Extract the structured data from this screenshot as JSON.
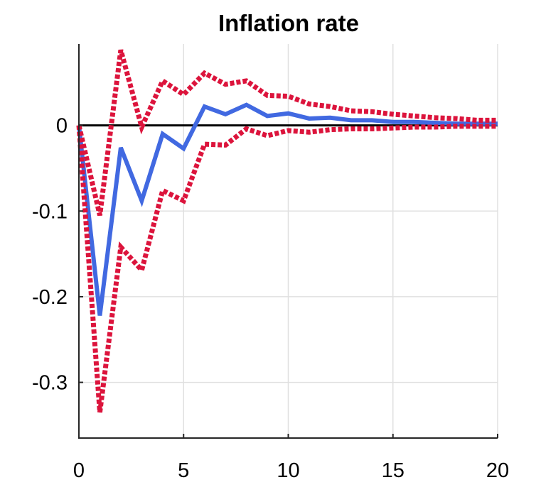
{
  "chart_data": {
    "type": "line",
    "title": "Inflation rate",
    "xlabel": "",
    "ylabel": "",
    "xlim": [
      0,
      20
    ],
    "ylim": [
      -0.365,
      0.095
    ],
    "x_ticks": [
      0,
      5,
      10,
      15,
      20
    ],
    "y_ticks": [
      0,
      -0.1,
      -0.2,
      -0.3
    ],
    "x_tick_labels": [
      "0",
      "5",
      "10",
      "15",
      "20"
    ],
    "y_tick_labels": [
      "0",
      "-0.1",
      "-0.2",
      "-0.3"
    ],
    "grid": true,
    "zero_line": true,
    "x": [
      0,
      1,
      2,
      3,
      4,
      5,
      6,
      7,
      8,
      9,
      10,
      11,
      12,
      13,
      14,
      15,
      16,
      17,
      18,
      19,
      20
    ],
    "series": [
      {
        "role": "point-estimate",
        "style": "solid",
        "color": "#4169e1",
        "values": [
          0,
          -0.222,
          -0.026,
          -0.088,
          -0.01,
          -0.027,
          0.022,
          0.013,
          0.024,
          0.011,
          0.014,
          0.008,
          0.009,
          0.006,
          0.006,
          0.004,
          0.004,
          0.003,
          0.002,
          0.002,
          0.002
        ]
      },
      {
        "role": "upper-band",
        "style": "dotted",
        "color": "#dc143c",
        "values": [
          0,
          -0.105,
          0.088,
          -0.002,
          0.052,
          0.036,
          0.061,
          0.048,
          0.052,
          0.035,
          0.034,
          0.025,
          0.022,
          0.017,
          0.016,
          0.013,
          0.011,
          0.009,
          0.008,
          0.006,
          0.006
        ]
      },
      {
        "role": "lower-band",
        "style": "dotted",
        "color": "#dc143c",
        "values": [
          0,
          -0.335,
          -0.142,
          -0.169,
          -0.076,
          -0.088,
          -0.022,
          -0.023,
          -0.004,
          -0.012,
          -0.006,
          -0.008,
          -0.005,
          -0.004,
          -0.004,
          -0.003,
          -0.002,
          -0.002,
          -0.001,
          -0.001,
          -0.001
        ]
      }
    ],
    "colors": {
      "grid": "#e0e0e0",
      "axis": "#262626",
      "zero_line": "#000000"
    }
  }
}
